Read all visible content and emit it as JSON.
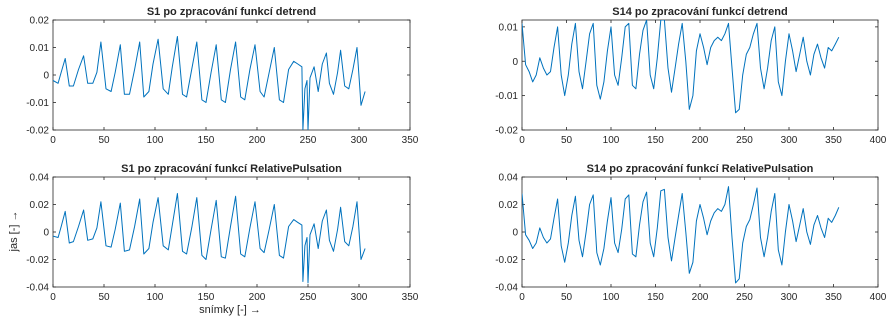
{
  "figure": {
    "xlabel": "snímky [-] →",
    "ylabel": "jas [-] →",
    "line_color": "#0072BD",
    "axis_color": "#262626"
  },
  "chart_data": [
    {
      "type": "line",
      "title": "S1 po zpracování funkcí detrend",
      "xlabel": "",
      "ylabel": "",
      "xlim": [
        0,
        350
      ],
      "ylim": [
        -0.02,
        0.02
      ],
      "xticks": [
        "0",
        "50",
        "100",
        "150",
        "200",
        "250",
        "300",
        "350"
      ],
      "yticks": [
        "0.02",
        "0.01",
        "0",
        "-0.01",
        "-0.02"
      ],
      "grid": false,
      "series": [
        {
          "x": [
            0,
            5,
            8,
            12,
            16,
            20,
            25,
            30,
            34,
            39,
            43,
            47,
            52,
            57,
            61,
            66,
            70,
            75,
            80,
            85,
            89,
            94,
            98,
            103,
            108,
            113,
            117,
            122,
            127,
            131,
            136,
            141,
            146,
            150,
            155,
            160,
            165,
            169,
            174,
            179,
            184,
            188,
            193,
            198,
            203,
            207,
            212,
            217,
            222,
            226,
            231,
            236,
            240,
            244,
            245,
            247,
            249,
            250,
            252,
            256,
            260,
            264,
            268,
            271,
            275,
            279,
            282,
            286,
            290,
            294,
            298,
            302,
            306
          ],
          "y": [
            -0.002,
            -0.003,
            0.001,
            0.006,
            -0.004,
            -0.004,
            0.002,
            0.007,
            -0.003,
            -0.003,
            0.001,
            0.012,
            -0.005,
            -0.006,
            0.001,
            0.011,
            -0.007,
            -0.007,
            0.002,
            0.012,
            -0.008,
            -0.006,
            0.004,
            0.013,
            -0.005,
            -0.007,
            0.003,
            0.014,
            -0.007,
            -0.008,
            0.002,
            0.012,
            -0.009,
            -0.01,
            0.001,
            0.011,
            -0.009,
            -0.01,
            0.002,
            0.012,
            -0.008,
            -0.009,
            0.002,
            0.011,
            -0.006,
            -0.008,
            0.001,
            0.01,
            -0.009,
            -0.01,
            0.002,
            0.005,
            0.004,
            0.003,
            -0.02,
            -0.005,
            -0.002,
            -0.02,
            -0.001,
            0.003,
            -0.006,
            0.004,
            0.008,
            -0.003,
            -0.007,
            0.001,
            0.009,
            -0.004,
            -0.005,
            0.002,
            0.01,
            -0.011,
            -0.006
          ]
        }
      ]
    },
    {
      "type": "line",
      "title": "S14 po zpracování funkcí detrend",
      "xlabel": "",
      "ylabel": "",
      "xlim": [
        0,
        400
      ],
      "ylim": [
        -0.02,
        0.012
      ],
      "xticks": [
        "0",
        "50",
        "100",
        "150",
        "200",
        "250",
        "300",
        "350",
        "400"
      ],
      "yticks": [
        "0.01",
        "0",
        "-0.01",
        "-0.02"
      ],
      "grid": false,
      "series": [
        {
          "x": [
            0,
            4,
            8,
            12,
            16,
            20,
            24,
            28,
            32,
            36,
            40,
            44,
            48,
            52,
            56,
            60,
            64,
            68,
            72,
            76,
            80,
            84,
            88,
            92,
            96,
            100,
            104,
            108,
            112,
            116,
            120,
            124,
            128,
            132,
            136,
            140,
            144,
            148,
            152,
            156,
            160,
            164,
            168,
            172,
            176,
            180,
            184,
            188,
            192,
            196,
            200,
            204,
            208,
            212,
            216,
            220,
            224,
            228,
            232,
            236,
            240,
            244,
            248,
            252,
            256,
            260,
            264,
            268,
            272,
            276,
            280,
            284,
            288,
            292,
            296,
            300,
            304,
            308,
            312,
            316,
            320,
            324,
            328,
            332,
            336,
            340,
            344,
            348,
            352,
            356
          ],
          "y": [
            0.011,
            -0.001,
            -0.003,
            -0.006,
            -0.004,
            0.001,
            -0.002,
            -0.004,
            -0.003,
            0.004,
            0.01,
            -0.004,
            -0.01,
            -0.004,
            0.005,
            0.011,
            -0.003,
            -0.008,
            0.0,
            0.008,
            0.011,
            -0.007,
            -0.011,
            -0.006,
            0.003,
            0.01,
            -0.004,
            -0.007,
            0.001,
            0.01,
            0.011,
            -0.007,
            -0.008,
            0.002,
            0.009,
            0.012,
            -0.004,
            -0.008,
            0.001,
            0.012,
            0.012,
            -0.002,
            -0.009,
            -0.002,
            0.005,
            0.011,
            0.0,
            -0.014,
            -0.01,
            0.003,
            0.008,
            0.004,
            -0.001,
            0.004,
            0.006,
            0.007,
            0.006,
            0.008,
            0.011,
            -0.002,
            -0.015,
            -0.014,
            -0.004,
            0.002,
            0.004,
            0.008,
            0.011,
            -0.002,
            -0.008,
            -0.002,
            0.006,
            0.01,
            -0.006,
            -0.01,
            0.0,
            0.008,
            0.003,
            -0.003,
            0.002,
            0.007,
            0.0,
            -0.004,
            0.002,
            0.005,
            0.001,
            -0.002,
            0.004,
            0.003,
            0.005,
            0.007
          ]
        }
      ]
    },
    {
      "type": "line",
      "title": "S1 po zpracování funkcí RelativePulsation",
      "xlabel": "snímky [-] →",
      "ylabel": "jas [-] →",
      "xlim": [
        0,
        350
      ],
      "ylim": [
        -0.04,
        0.04
      ],
      "xticks": [
        "0",
        "50",
        "100",
        "150",
        "200",
        "250",
        "300",
        "350"
      ],
      "yticks": [
        "0.04",
        "0.02",
        "0",
        "-0.02",
        "-0.04"
      ],
      "grid": false,
      "series": [
        {
          "x": [
            0,
            5,
            8,
            12,
            16,
            20,
            25,
            30,
            34,
            39,
            43,
            47,
            52,
            57,
            61,
            66,
            70,
            75,
            80,
            85,
            89,
            94,
            98,
            103,
            108,
            113,
            117,
            122,
            127,
            131,
            136,
            141,
            146,
            150,
            155,
            160,
            165,
            169,
            174,
            179,
            184,
            188,
            193,
            198,
            203,
            207,
            212,
            217,
            222,
            226,
            231,
            236,
            240,
            244,
            245,
            247,
            249,
            250,
            252,
            256,
            260,
            264,
            268,
            271,
            275,
            279,
            282,
            286,
            290,
            294,
            298,
            302,
            306
          ],
          "y": [
            -0.003,
            -0.004,
            0.004,
            0.015,
            -0.008,
            -0.007,
            0.004,
            0.016,
            -0.006,
            -0.005,
            0.003,
            0.022,
            -0.01,
            -0.011,
            0.002,
            0.021,
            -0.014,
            -0.013,
            0.004,
            0.024,
            -0.016,
            -0.012,
            0.007,
            0.025,
            -0.01,
            -0.013,
            0.005,
            0.028,
            -0.014,
            -0.016,
            0.003,
            0.025,
            -0.017,
            -0.02,
            0.002,
            0.023,
            -0.018,
            -0.019,
            0.004,
            0.026,
            -0.016,
            -0.018,
            0.003,
            0.022,
            -0.012,
            -0.015,
            0.002,
            0.02,
            -0.017,
            -0.019,
            0.004,
            0.009,
            0.007,
            0.005,
            -0.036,
            -0.01,
            -0.004,
            -0.037,
            -0.002,
            0.006,
            -0.012,
            0.008,
            0.016,
            -0.006,
            -0.014,
            0.002,
            0.018,
            -0.007,
            -0.01,
            0.004,
            0.022,
            -0.02,
            -0.012
          ]
        }
      ]
    },
    {
      "type": "line",
      "title": "S14 po zpracování funkcí RelativePulsation",
      "xlabel": "",
      "ylabel": "",
      "xlim": [
        0,
        400
      ],
      "ylim": [
        -0.04,
        0.04
      ],
      "xticks": [
        "0",
        "50",
        "100",
        "150",
        "200",
        "250",
        "300",
        "350",
        "400"
      ],
      "yticks": [
        "0.04",
        "0.02",
        "0",
        "-0.02",
        "-0.04"
      ],
      "grid": false,
      "series": [
        {
          "x": [
            0,
            4,
            8,
            12,
            16,
            20,
            24,
            28,
            32,
            36,
            40,
            44,
            48,
            52,
            56,
            60,
            64,
            68,
            72,
            76,
            80,
            84,
            88,
            92,
            96,
            100,
            104,
            108,
            112,
            116,
            120,
            124,
            128,
            132,
            136,
            140,
            144,
            148,
            152,
            156,
            160,
            164,
            168,
            172,
            176,
            180,
            184,
            188,
            192,
            196,
            200,
            204,
            208,
            212,
            216,
            220,
            224,
            228,
            232,
            236,
            240,
            244,
            248,
            252,
            256,
            260,
            264,
            268,
            272,
            276,
            280,
            284,
            288,
            292,
            296,
            300,
            304,
            308,
            312,
            316,
            320,
            324,
            328,
            332,
            336,
            340,
            344,
            348,
            352,
            356
          ],
          "y": [
            0.028,
            -0.002,
            -0.006,
            -0.012,
            -0.008,
            0.003,
            -0.004,
            -0.008,
            -0.005,
            0.01,
            0.024,
            -0.01,
            -0.022,
            -0.008,
            0.012,
            0.026,
            -0.006,
            -0.018,
            0.0,
            0.02,
            0.027,
            -0.015,
            -0.024,
            -0.012,
            0.008,
            0.025,
            -0.008,
            -0.015,
            0.002,
            0.024,
            0.027,
            -0.016,
            -0.018,
            0.005,
            0.022,
            0.029,
            -0.008,
            -0.018,
            0.003,
            0.03,
            0.031,
            -0.004,
            -0.021,
            -0.004,
            0.012,
            0.028,
            0.0,
            -0.03,
            -0.022,
            0.008,
            0.02,
            0.01,
            -0.002,
            0.008,
            0.014,
            0.017,
            0.015,
            0.02,
            0.033,
            -0.004,
            -0.037,
            -0.034,
            -0.008,
            0.004,
            0.009,
            0.02,
            0.032,
            -0.004,
            -0.018,
            -0.004,
            0.015,
            0.028,
            -0.013,
            -0.024,
            0.0,
            0.02,
            0.008,
            -0.007,
            0.005,
            0.017,
            0.0,
            -0.009,
            0.005,
            0.012,
            0.003,
            -0.004,
            0.01,
            0.007,
            0.012,
            0.018
          ]
        }
      ]
    }
  ]
}
